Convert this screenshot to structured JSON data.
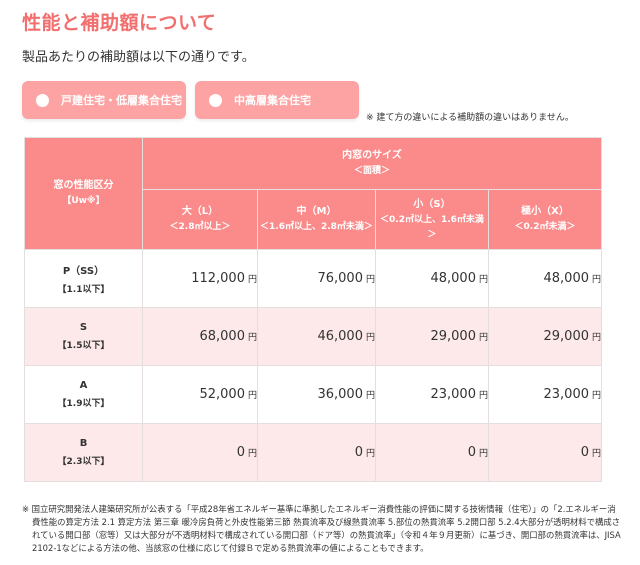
{
  "page": {
    "title": "性能と補助額について",
    "lead": "製品あたりの補助額は以下の通りです。"
  },
  "building_types": [
    {
      "label": "戸建住宅・低層集合住宅"
    },
    {
      "label": "中高層集合住宅"
    }
  ],
  "building_note": "※ 建て方の違いによる補助額の違いはありません。",
  "table": {
    "performance_header": "窓の性能区分",
    "performance_unit": "【Uw※】",
    "size_header": "内窓のサイズ",
    "size_sub": "＜面積＞",
    "sizes": [
      {
        "label": "大（L）",
        "range": "＜2.8㎡以上＞"
      },
      {
        "label": "中（M）",
        "range": "＜1.6㎡以上、2.8㎡未満＞"
      },
      {
        "label": "小（S）",
        "range": "＜0.2㎡以上、1.6㎡未満＞"
      },
      {
        "label": "極小（X）",
        "range": "＜0.2㎡未満＞"
      }
    ],
    "currency": "円",
    "rows": [
      {
        "grade": "P（SS）",
        "limit": "【1.1以下】",
        "values": [
          "112,000",
          "76,000",
          "48,000",
          "48,000"
        ]
      },
      {
        "grade": "S",
        "limit": "【1.5以下】",
        "values": [
          "68,000",
          "46,000",
          "29,000",
          "29,000"
        ]
      },
      {
        "grade": "A",
        "limit": "【1.9以下】",
        "values": [
          "52,000",
          "36,000",
          "23,000",
          "23,000"
        ]
      },
      {
        "grade": "B",
        "limit": "【2.3以下】",
        "values": [
          "0",
          "0",
          "0",
          "0"
        ]
      }
    ]
  },
  "footnote": "※ 国立研究開発法人建築研究所が公表する「平成28年省エネルギー基準に準拠したエネルギー消費性能の評価に関する技術情報（住宅）」の「2.エネルギー消費性能の算定方法 2.1 算定方法 第三章 暖冷房負荷と外皮性能第三節 熱貫流率及び線熱貫流率 5.部位の熱貫流率 5.2開口部 5.2.4大部分が透明材料で構成されている開口部（窓等）又は大部分が不透明材料で構成されている開口部（ドア等）の熱貫流率」（令和４年９月更新）に基づき、開口部の熱貫流率は、JISA 2102-1などによる方法の他、当該窓の仕様に応じて付録Ｂで定める熱貫流率の値によることもできます。"
}
